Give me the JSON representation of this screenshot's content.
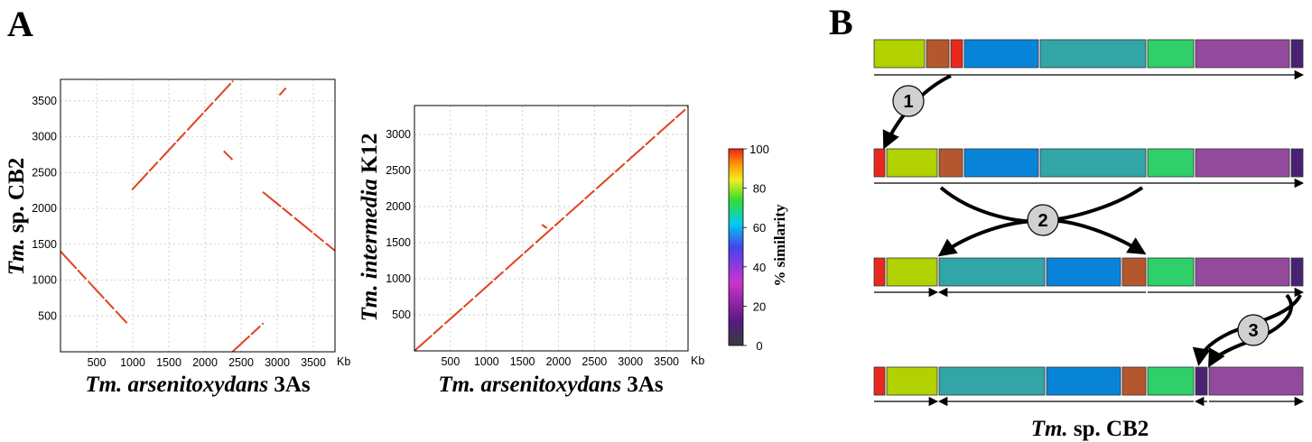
{
  "panel_a_label": "A",
  "panel_b_label": "B",
  "chart_data": [
    {
      "type": "scatter",
      "title": "",
      "xlabel_italic": "Tm. arsenitoxydans",
      "xlabel_rest": " 3As",
      "ylabel_italic": "Tm.",
      "ylabel_rest": " sp. CB2",
      "x_unit": "Kb",
      "xlim": [
        0,
        3800
      ],
      "ylim": [
        0,
        3800
      ],
      "x_ticks": [
        500,
        1000,
        1500,
        2000,
        2500,
        3000,
        3500
      ],
      "y_ticks": [
        500,
        1000,
        1500,
        2000,
        2500,
        3000,
        3500
      ],
      "grid": true,
      "segments": [
        {
          "x": [
            0,
            920
          ],
          "y": [
            1400,
            400
          ],
          "similarity": 100
        },
        {
          "x": [
            2380,
            2810
          ],
          "y": [
            0,
            400
          ],
          "similarity": 100
        },
        {
          "x": [
            990,
            2390
          ],
          "y": [
            2260,
            3780
          ],
          "similarity": 100
        },
        {
          "x": [
            3030,
            3120
          ],
          "y": [
            3580,
            3680
          ],
          "similarity": 100
        },
        {
          "x": [
            2260,
            2380
          ],
          "y": [
            2800,
            2680
          ],
          "similarity": 100
        },
        {
          "x": [
            2800,
            3800
          ],
          "y": [
            2230,
            1410
          ],
          "similarity": 100
        }
      ]
    },
    {
      "type": "scatter",
      "title": "",
      "xlabel_italic": "Tm. arsenitoxydans",
      "xlabel_rest": " 3As",
      "ylabel_italic": "Tm. intermedia",
      "ylabel_rest": " K12",
      "x_unit": "Kb",
      "xlim": [
        0,
        3800
      ],
      "ylim": [
        0,
        3400
      ],
      "x_ticks": [
        500,
        1000,
        1500,
        2000,
        2500,
        3000,
        3500
      ],
      "y_ticks": [
        500,
        1000,
        1500,
        2000,
        2500,
        3000
      ],
      "grid": true,
      "segments": [
        {
          "x": [
            0,
            3800
          ],
          "y": [
            0,
            3380
          ],
          "similarity": 100
        },
        {
          "x": [
            1770,
            1840
          ],
          "y": [
            1750,
            1700
          ],
          "similarity": 100
        }
      ]
    }
  ],
  "colorbar": {
    "title": "% similarity",
    "ticks": [
      0,
      20,
      40,
      60,
      80,
      100
    ],
    "colors": [
      "#3c3c3c",
      "#551a80",
      "#cc33cc",
      "#4444ee",
      "#00ccee",
      "#33dd33",
      "#eeee22",
      "#ff9900",
      "#ee2222"
    ]
  },
  "genome_rearrangement": {
    "caption_italic": "Tm.",
    "caption_rest": " sp. CB2",
    "steps": [
      "1",
      "2",
      "3"
    ],
    "block_colors": {
      "lime": "#b2d100",
      "brown": "#b5572e",
      "red": "#e8281e",
      "blue": "#0784d8",
      "teal": "#32a5a6",
      "green": "#2fcf6a",
      "violet": "#944a9c",
      "indigo": "#4a2273"
    }
  }
}
